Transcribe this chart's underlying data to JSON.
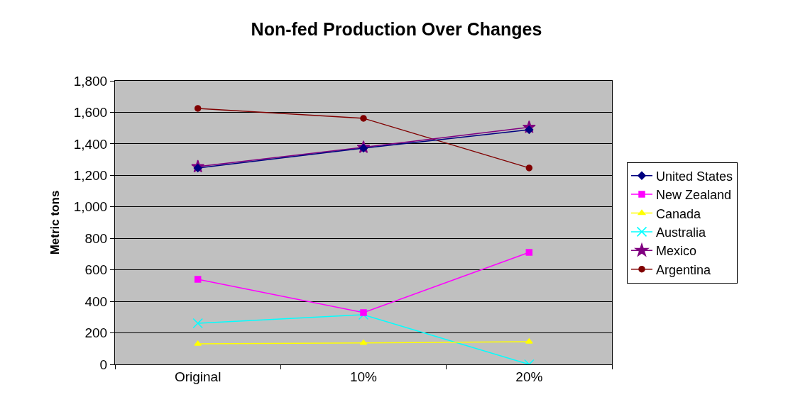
{
  "chart_data": {
    "type": "line",
    "title": "Non-fed Production Over Changes",
    "ylabel": "Metric tons",
    "categories": [
      "Original",
      "10%",
      "20%"
    ],
    "series": [
      {
        "name": "United States",
        "color": "#000080",
        "marker": "diamond",
        "values": [
          1246,
          1372,
          1490
        ]
      },
      {
        "name": "New Zealand",
        "color": "#ff00ff",
        "marker": "square",
        "values": [
          540,
          329,
          711
        ]
      },
      {
        "name": "Canada",
        "color": "#ffff00",
        "marker": "triangle",
        "values": [
          130,
          136,
          144
        ]
      },
      {
        "name": "Australia",
        "color": "#00ffff",
        "marker": "cross",
        "values": [
          261,
          315,
          0
        ]
      },
      {
        "name": "Mexico",
        "color": "#800080",
        "marker": "star",
        "values": [
          1255,
          1378,
          1505
        ]
      },
      {
        "name": "Argentina",
        "color": "#800000",
        "marker": "circle",
        "values": [
          1625,
          1562,
          1247
        ]
      }
    ],
    "ylim": [
      0,
      1800
    ],
    "yticks": [
      {
        "value": 0,
        "label": "0"
      },
      {
        "value": 200,
        "label": "200"
      },
      {
        "value": 400,
        "label": "400"
      },
      {
        "value": 600,
        "label": "600"
      },
      {
        "value": 800,
        "label": "800"
      },
      {
        "value": 1000,
        "label": "1,000"
      },
      {
        "value": 1200,
        "label": "1,200"
      },
      {
        "value": 1400,
        "label": "1,400"
      },
      {
        "value": 1600,
        "label": "1,600"
      },
      {
        "value": 1800,
        "label": "1,800"
      }
    ],
    "grid": "y",
    "legend": "right",
    "line_style": "solid"
  }
}
